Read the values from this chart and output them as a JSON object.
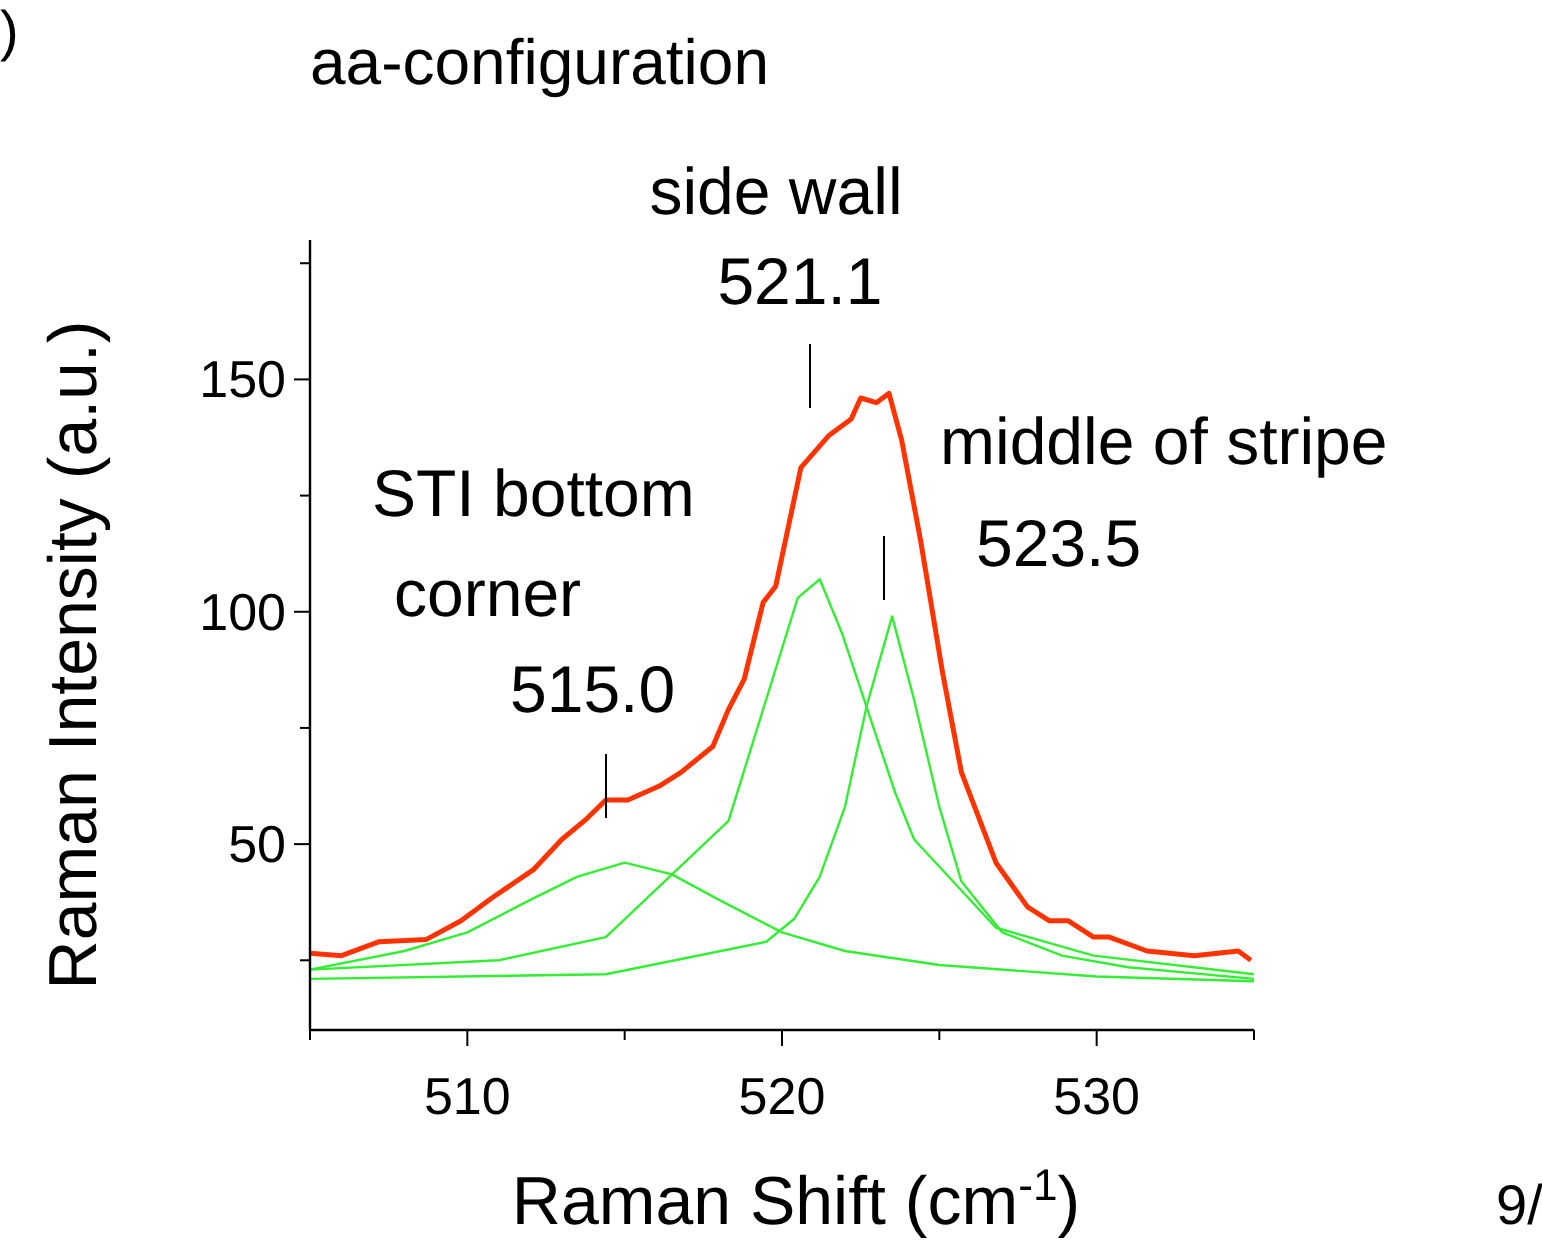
{
  "chart_data": {
    "type": "line",
    "title": "aa-configuration",
    "xlabel": "Raman Shift (cm$^{-1}$)",
    "ylabel": "Raman Intensity (a.u.)",
    "xlim": [
      505,
      535
    ],
    "xticks": [
      {
        "value": 505,
        "label": null
      },
      510,
      {
        "value": 515,
        "label": null
      },
      520,
      {
        "value": 525,
        "label": null
      },
      530,
      {
        "value": 535,
        "label": null
      }
    ],
    "ylim": [
      10,
      180
    ],
    "yticks": [
      {
        "value": 25,
        "label": null
      },
      50,
      {
        "value": 75,
        "label": null
      },
      100,
      {
        "value": 125,
        "label": null
      },
      150,
      {
        "value": 175,
        "label": null
      }
    ],
    "grid": false,
    "marker": "none",
    "line_style": "solid",
    "series": [
      {
        "color": "#33ee33",
        "x": [
          505,
          508,
          510,
          512,
          513.5,
          515,
          516.5,
          518,
          520,
          522,
          525,
          530,
          535
        ],
        "values": [
          23,
          27,
          31,
          38,
          43,
          46,
          43.5,
          38,
          31,
          27,
          24,
          21.5,
          20.5
        ]
      },
      {
        "color": "#33ee33",
        "x": [
          505,
          511,
          514.4,
          518.3,
          520.5,
          521.2,
          521.9,
          523.6,
          524.2,
          526.8,
          529.9,
          535
        ],
        "values": [
          23,
          25,
          30,
          55,
          103,
          107,
          95.5,
          61,
          51,
          32,
          26,
          22
        ]
      },
      {
        "color": "#33ee33",
        "x": [
          505,
          514.4,
          519.5,
          520.4,
          521.2,
          522,
          522.7,
          523.5,
          524.2,
          525,
          525.7,
          527,
          528.9,
          531,
          535
        ],
        "values": [
          21,
          22,
          29,
          34,
          43,
          58,
          80,
          99,
          81,
          58,
          42,
          31,
          26,
          23.5,
          21
        ]
      },
      {
        "color": "#ff3300",
        "x": [
          505,
          506,
          507.2,
          508.7,
          509.8,
          510.8,
          512.1,
          513,
          513.8,
          514.4,
          515.1,
          516.1,
          516.8,
          517.8,
          518.3,
          518.8,
          519.4,
          519.8,
          520.6,
          521.5,
          522.2,
          522.5,
          523,
          523.4,
          523.8,
          524.4,
          525.1,
          525.7,
          526.8,
          527.8,
          528.5,
          529.1,
          529.9,
          530.4,
          531.6,
          533.1,
          534.5,
          534.9
        ],
        "values": [
          26.5,
          26,
          29,
          29.5,
          33.5,
          38.5,
          44.5,
          51,
          55.5,
          59.5,
          59.5,
          62.5,
          65.5,
          71,
          79,
          85.5,
          102,
          105.5,
          131,
          138,
          141.5,
          146,
          145,
          147,
          137,
          115.5,
          87,
          65.5,
          46,
          36.5,
          33.5,
          33.5,
          30,
          30,
          27,
          26,
          27,
          25
        ]
      }
    ],
    "annotations": [
      "side wall\n521.1",
      "middle of stripe\n523.5",
      "STI bottom\ncorner\n515.0",
      "9/",
      ")"
    ]
  }
}
